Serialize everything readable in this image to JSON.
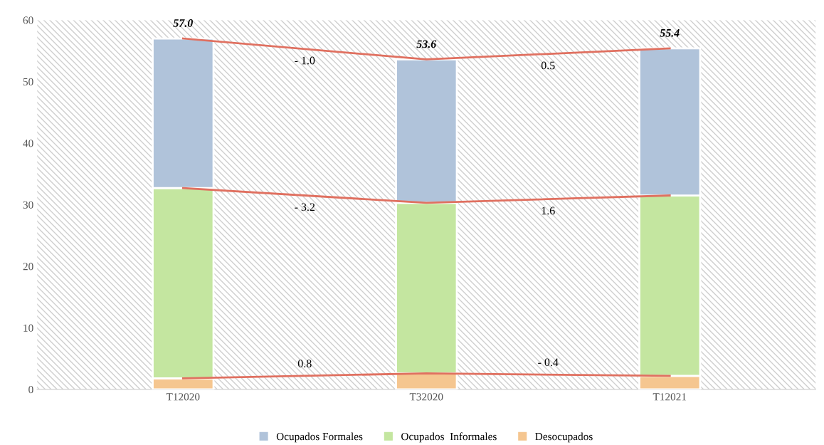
{
  "chart_data": {
    "type": "bar",
    "stacked": true,
    "categories": [
      "T12020",
      "T32020",
      "T12021"
    ],
    "series": [
      {
        "name": "Desocupados",
        "color": "#f5c690",
        "values": [
          1.8,
          2.6,
          2.2
        ]
      },
      {
        "name": "Ocupados  Informales",
        "color": "#c4e6a0",
        "values": [
          30.9,
          27.7,
          29.3
        ]
      },
      {
        "name": "Ocupados Formales",
        "color": "#b0c3da",
        "values": [
          24.3,
          23.3,
          23.9
        ]
      },
      {
        "type": "line",
        "color": "#e07060",
        "values": [
          57.0,
          53.6,
          55.4
        ]
      },
      {
        "type": "line",
        "color": "#e07060",
        "values": [
          32.7,
          30.3,
          31.5
        ]
      },
      {
        "type": "line",
        "color": "#e07060",
        "values": [
          1.8,
          2.6,
          2.2
        ]
      }
    ],
    "totals": [
      "57.0",
      "53.6",
      "55.4"
    ],
    "annotations": [
      "- 1.0",
      "0.5",
      "- 3.2",
      "1.6",
      "0.8",
      "- 0.4"
    ],
    "ylim": [
      0,
      60
    ],
    "yticks": [
      0,
      10,
      20,
      30,
      40,
      50,
      60
    ],
    "grid": false,
    "legend": "bottom"
  }
}
